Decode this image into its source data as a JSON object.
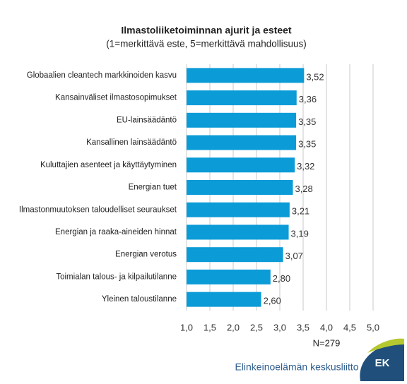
{
  "chart_data": {
    "type": "bar",
    "orientation": "horizontal",
    "title": "Ilmastoliiketoiminnan ajurit ja esteet",
    "subtitle": "(1=merkittävä este, 5=merkittävä mahdollisuus)",
    "note": "N=279",
    "footer": "Elinkeinoelämän keskusliitto",
    "logo_text": "EK",
    "categories": [
      "Globaalien cleantech markkinoiden kasvu",
      "Kansainväliset ilmastosopimukset",
      "EU-lainsäädäntö",
      "Kansallinen lainsäädäntö",
      "Kuluttajien asenteet ja käyttäytyminen",
      "Energian tuet",
      "Ilmastonmuutoksen taloudelliset seuraukset",
      "Energian ja raaka-aineiden hinnat",
      "Energian verotus",
      "Toimialan talous- ja kilpailutilanne",
      "Yleinen taloustilanne"
    ],
    "values": [
      3.52,
      3.36,
      3.35,
      3.35,
      3.32,
      3.28,
      3.21,
      3.19,
      3.07,
      2.8,
      2.6
    ],
    "value_labels": [
      "3,52",
      "3,36",
      "3,35",
      "3,35",
      "3,32",
      "3,28",
      "3,21",
      "3,19",
      "3,07",
      "2,80",
      "2,60"
    ],
    "color": "#0b9bd7",
    "xlim": [
      1,
      5
    ],
    "xticks": [
      {
        "value": 1,
        "label": "1,0"
      },
      {
        "value": 1.5,
        "label": "1,5"
      },
      {
        "value": 2,
        "label": "2,0"
      },
      {
        "value": 2.5,
        "label": "2,5"
      },
      {
        "value": 3,
        "label": "3,0"
      },
      {
        "value": 3.5,
        "label": "3,5"
      },
      {
        "value": 4,
        "label": "4,0"
      },
      {
        "value": 4.5,
        "label": "4,5"
      },
      {
        "value": 5,
        "label": "5,0"
      }
    ],
    "grid": true
  }
}
